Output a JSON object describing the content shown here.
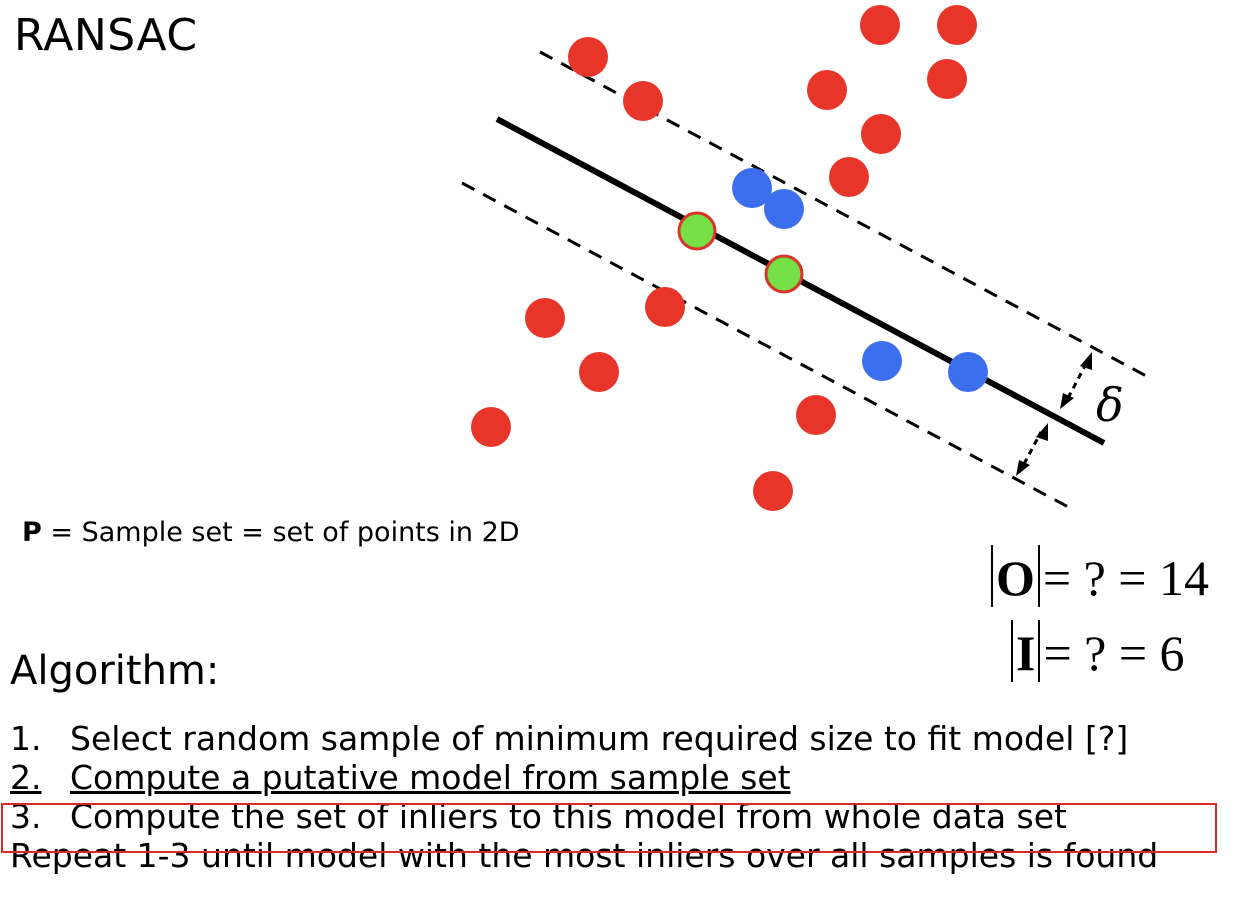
{
  "title": "RANSAC",
  "sample_def": {
    "symbol": "P",
    "text": " = Sample set = set of points in 2D"
  },
  "threshold_symbol": "δ",
  "equations": {
    "outliers": {
      "symbol": "O",
      "rest": "= ? = 14"
    },
    "inliers": {
      "symbol": "I",
      "rest": "= ? = 6"
    }
  },
  "algorithm_heading": "Algorithm:",
  "steps": [
    {
      "num": "1.",
      "text": "Select random sample of minimum required size to fit model [?]"
    },
    {
      "num": "2.",
      "text": "Compute a putative model from sample set"
    },
    {
      "num": "3.",
      "text": "Compute the set of inliers to this model from whole data set"
    }
  ],
  "repeat_line": "Repeat 1-3 until model with the most inliers over all samples is found",
  "colors": {
    "outlier": "#e8352a",
    "inlier": "#3b6fee",
    "sample": "#74e045",
    "sample_stroke": "#d9342a",
    "highlight_box": "#d9282a"
  }
}
